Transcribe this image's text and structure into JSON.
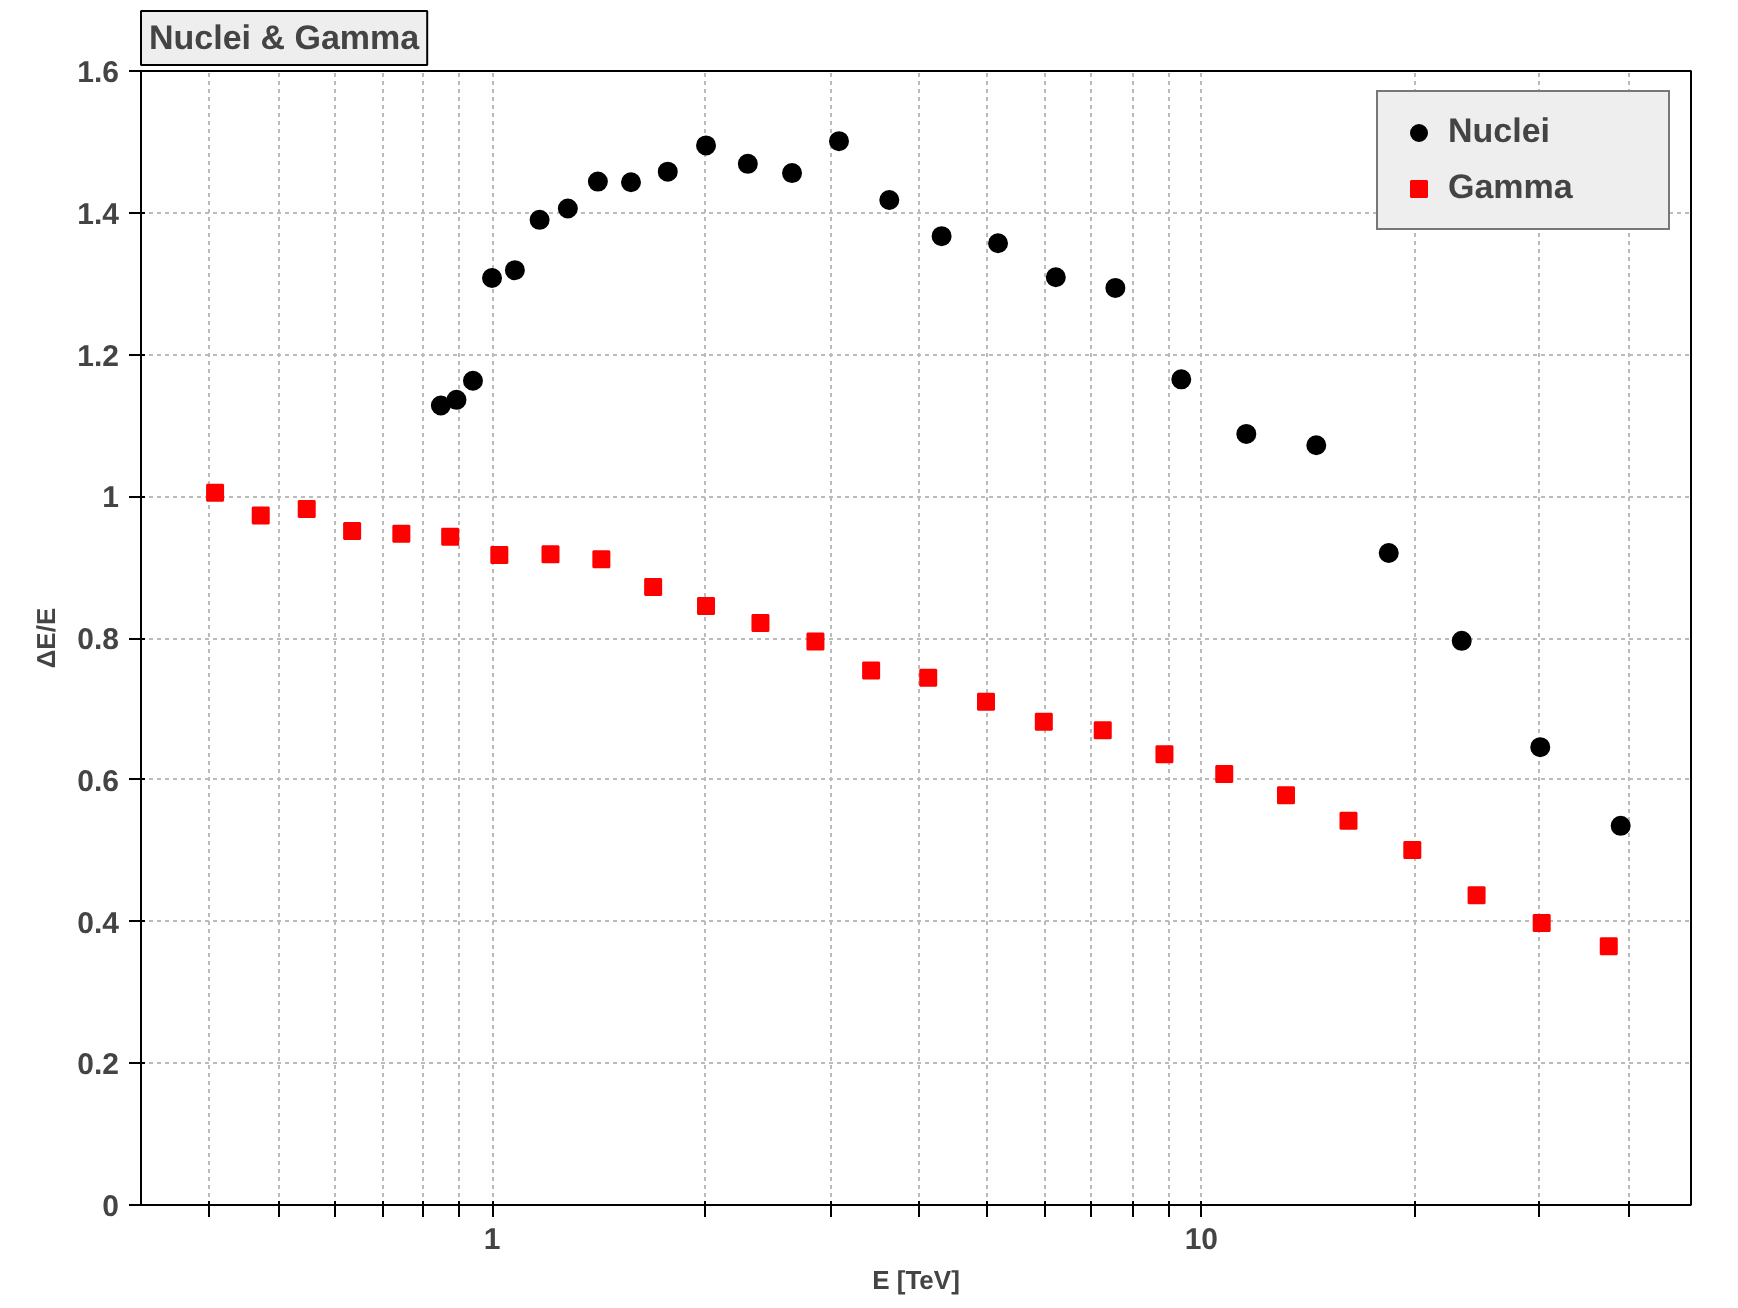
{
  "chart_data": {
    "type": "scatter",
    "title": "Nuclei & Gamma",
    "xlabel": "E [TeV]",
    "ylabel": "ΔE/E",
    "log": "x",
    "grid": true,
    "legend": "top right",
    "xlim": [
      0.32,
      49
    ],
    "ylim": [
      0,
      1.6
    ],
    "xticks": [
      {
        "value": 0.4,
        "label": null
      },
      {
        "value": 0.5,
        "label": null
      },
      {
        "value": 0.6,
        "label": null
      },
      {
        "value": 0.7,
        "label": null
      },
      {
        "value": 0.8,
        "label": null
      },
      {
        "value": 0.9,
        "label": null
      },
      1,
      {
        "value": 2,
        "label": null
      },
      {
        "value": 3,
        "label": null
      },
      {
        "value": 4,
        "label": null
      },
      {
        "value": 5,
        "label": null
      },
      {
        "value": 6,
        "label": null
      },
      {
        "value": 7,
        "label": null
      },
      {
        "value": 8,
        "label": null
      },
      {
        "value": 9,
        "label": null
      },
      10,
      {
        "value": 20,
        "label": null
      },
      {
        "value": 30,
        "label": null
      },
      {
        "value": 40,
        "label": null
      }
    ],
    "yticks": [
      0,
      0.2,
      0.4,
      0.6,
      0.8,
      1,
      1.2,
      1.4,
      1.6
    ],
    "series": [
      {
        "name": "Nuclei",
        "color": "#000000",
        "marker": "circle",
        "x": [
          0.847,
          0.891,
          0.94,
          1.0,
          1.077,
          1.167,
          1.279,
          1.41,
          1.57,
          1.769,
          2.003,
          2.294,
          2.648,
          3.084,
          3.631,
          4.303,
          5.168,
          6.234,
          7.564,
          9.368,
          11.57,
          14.52,
          18.37,
          23.28,
          30.04,
          39.0
        ],
        "values": [
          1.128,
          1.136,
          1.163,
          1.308,
          1.319,
          1.39,
          1.406,
          1.444,
          1.443,
          1.458,
          1.495,
          1.469,
          1.456,
          1.501,
          1.418,
          1.367,
          1.357,
          1.309,
          1.294,
          1.165,
          1.088,
          1.072,
          0.92,
          0.796,
          0.646,
          0.535
        ]
      },
      {
        "name": "Gamma",
        "color": "#ff0000",
        "marker": "square",
        "x": [
          0.407,
          0.472,
          0.548,
          0.635,
          0.745,
          0.873,
          1.024,
          1.209,
          1.426,
          1.687,
          2.003,
          2.39,
          2.857,
          3.423,
          4.12,
          4.97,
          5.996,
          7.26,
          8.87,
          10.77,
          13.16,
          16.12,
          19.83,
          24.43,
          30.18,
          37.52
        ],
        "values": [
          1.005,
          0.973,
          0.982,
          0.951,
          0.947,
          0.943,
          0.917,
          0.918,
          0.911,
          0.872,
          0.845,
          0.821,
          0.795,
          0.754,
          0.744,
          0.71,
          0.682,
          0.67,
          0.636,
          0.608,
          0.578,
          0.542,
          0.501,
          0.437,
          0.398,
          0.365
        ]
      }
    ]
  }
}
